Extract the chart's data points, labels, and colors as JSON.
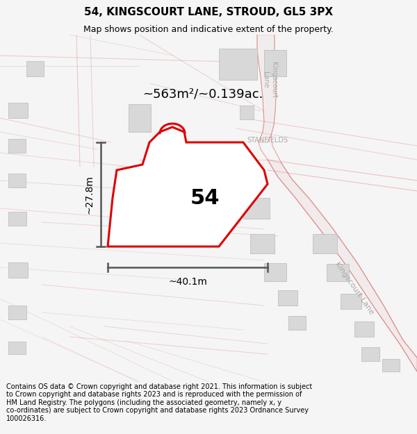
{
  "title": "54, KINGSCOURT LANE, STROUD, GL5 3PX",
  "subtitle": "Map shows position and indicative extent of the property.",
  "footer": "Contains OS data © Crown copyright and database right 2021. This information is subject\nto Crown copyright and database rights 2023 and is reproduced with the permission of\nHM Land Registry. The polygons (including the associated geometry, namely x, y\nco-ordinates) are subject to Crown copyright and database rights 2023 Ordnance Survey\n100026316.",
  "area_label": "~563m²/~0.139ac.",
  "width_label": "~40.1m",
  "height_label": "~27.8m",
  "plot_number": "54",
  "bg_color": "#f5f5f5",
  "map_bg": "#ffffff",
  "road_line_color": "#e08080",
  "road_fill_color": "#f8f0f0",
  "building_color": "#d8d8d8",
  "building_edge": "#c0c0c0",
  "plot_color": "#dd0000",
  "dim_color": "#555555",
  "road_label_color": "#aaaaaa",
  "stanfields_color": "#aaaaaa",
  "title_fontsize": 11,
  "subtitle_fontsize": 9,
  "footer_fontsize": 7,
  "area_fontsize": 13,
  "plot_num_fontsize": 22,
  "dim_fontsize": 10,
  "road_label_fontsize": 8
}
